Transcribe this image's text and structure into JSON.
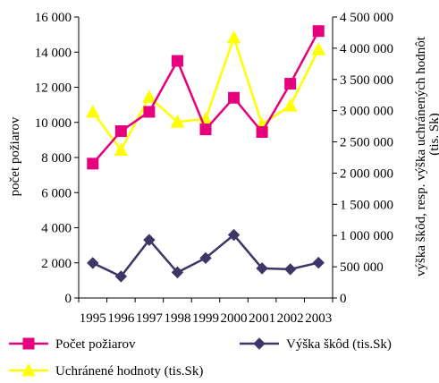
{
  "chart_data": {
    "type": "line",
    "title": "",
    "x": [
      "1995",
      "1996",
      "1997",
      "1998",
      "1999",
      "2000",
      "2001",
      "2002",
      "2003"
    ],
    "ylabel_left": "počet požiarov",
    "ylabel_right_line1": "výška škôd, resp. výška uchránených hodnôt",
    "ylabel_right_line2": "(tis. Sk)",
    "ylim_left": [
      0,
      16000
    ],
    "ylim_right": [
      0,
      4500000
    ],
    "yticks_left": [
      "0",
      "2 000",
      "4 000",
      "6 000",
      "8 000",
      "10 000",
      "12 000",
      "14 000",
      "16 000"
    ],
    "yticks_right": [
      "0",
      "500 000",
      "1 000 000",
      "1 500 000",
      "2 000 000",
      "2 500 000",
      "3 000 000",
      "3 500 000",
      "4 000 000",
      "4 500 000"
    ],
    "legend_position": "bottom",
    "series": [
      {
        "name": "Počet požiarov",
        "axis": "left",
        "marker": "square",
        "color": "#e6007e",
        "values": [
          7650,
          9500,
          10600,
          13500,
          9600,
          11400,
          9450,
          12200,
          15200
        ]
      },
      {
        "name": "Výška škôd (tis.Sk)",
        "axis": "right",
        "marker": "diamond",
        "color": "#3d3768",
        "values": [
          560000,
          345000,
          930000,
          410000,
          640000,
          1010000,
          475000,
          460000,
          565000
        ]
      },
      {
        "name": "Uchránené hodnoty (tis.Sk)",
        "axis": "right",
        "marker": "triangle",
        "color": "#ffff00",
        "values": [
          2980000,
          2370000,
          3220000,
          2820000,
          2870000,
          4170000,
          2780000,
          3080000,
          3980000
        ]
      }
    ]
  }
}
